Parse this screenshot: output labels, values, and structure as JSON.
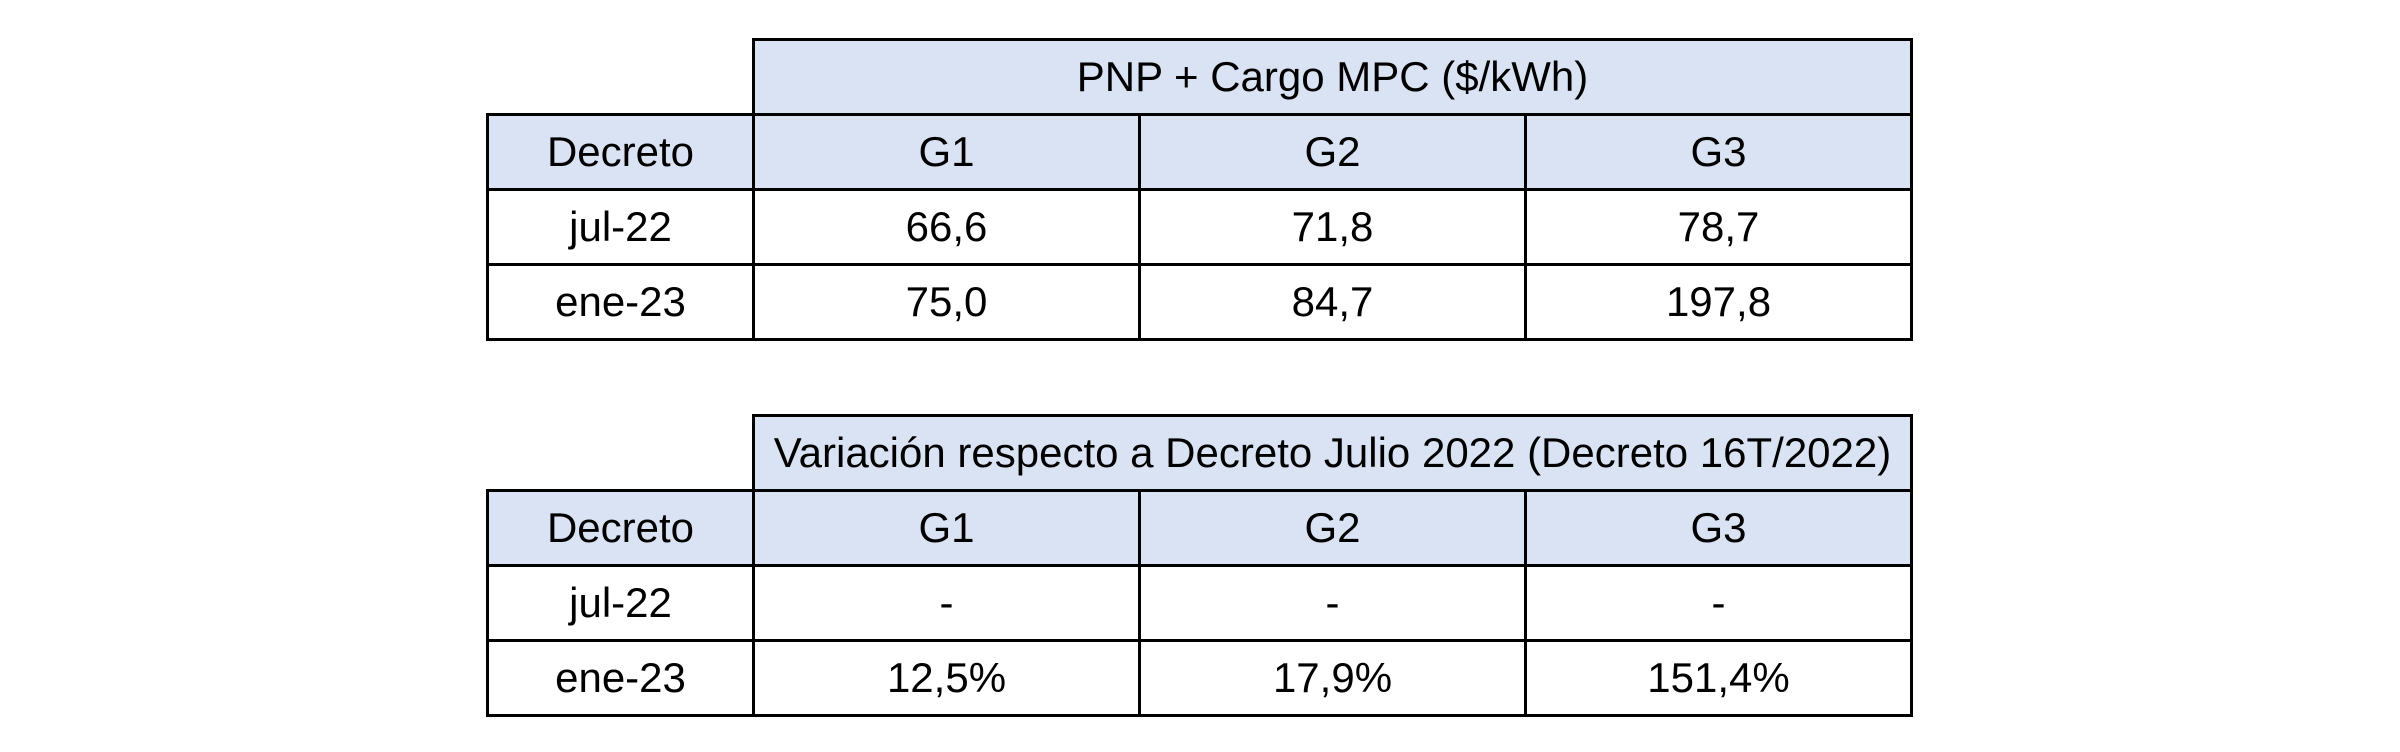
{
  "table1": {
    "title": "PNP + Cargo MPC ($/kWh)",
    "row_header": "Decreto",
    "columns": [
      "G1",
      "G2",
      "G3"
    ],
    "rows": [
      {
        "label": "jul-22",
        "values": [
          "66,6",
          "71,8",
          "78,7"
        ]
      },
      {
        "label": "ene-23",
        "values": [
          "75,0",
          "84,7",
          "197,8"
        ]
      }
    ]
  },
  "table2": {
    "title": "Variación respecto a Decreto Julio 2022 (Decreto 16T/2022)",
    "row_header": "Decreto",
    "columns": [
      "G1",
      "G2",
      "G3"
    ],
    "rows": [
      {
        "label": "jul-22",
        "values": [
          "-",
          "-",
          "-"
        ]
      },
      {
        "label": "ene-23",
        "values": [
          "12,5%",
          "17,9%",
          "151,4%"
        ]
      }
    ]
  },
  "colors": {
    "header_fill": "#dae3f3",
    "border": "#000000"
  }
}
